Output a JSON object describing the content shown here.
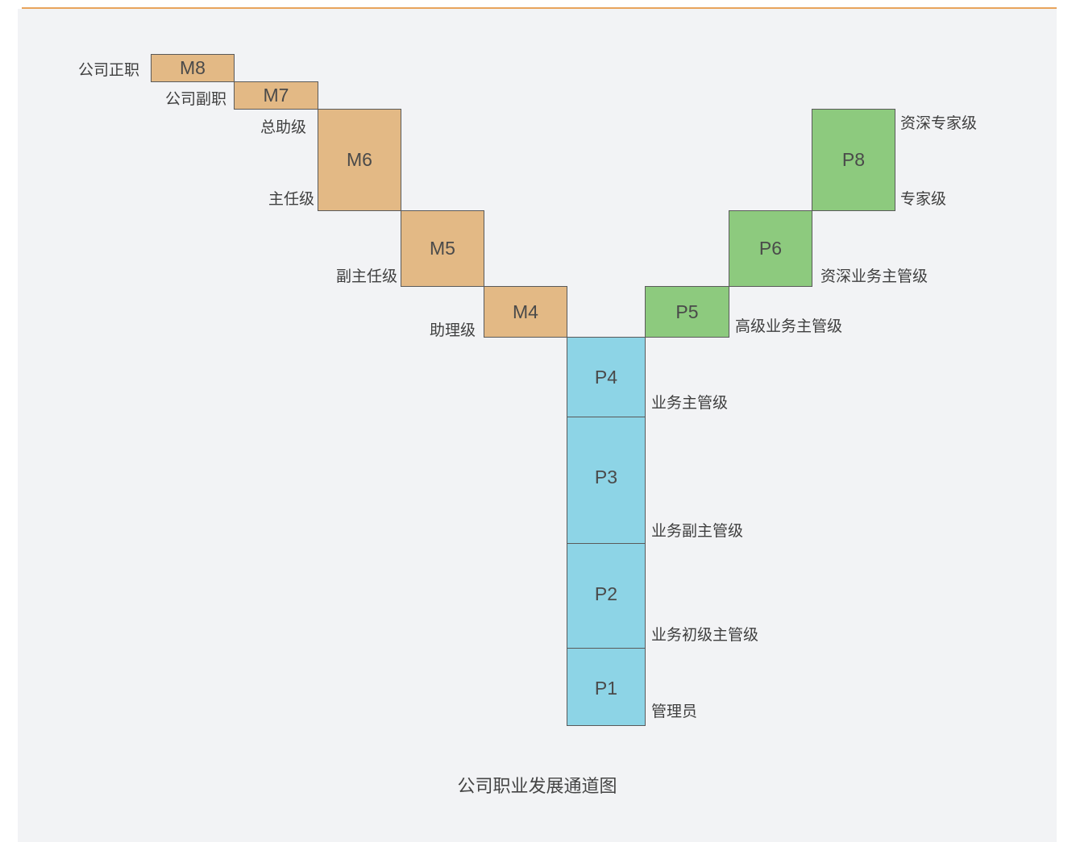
{
  "colors": {
    "management": "#e3b985",
    "professional_senior": "#8dca7e",
    "professional_base": "#8dd4e6",
    "top_rule": "#e8a45c",
    "background": "#f2f3f5"
  },
  "caption": "公司职业发展通道图",
  "management_track": [
    {
      "code": "M8",
      "title": "公司正职"
    },
    {
      "code": "M7",
      "title": "公司副职"
    },
    {
      "code": "M6",
      "titles": [
        "总助级",
        "主任级"
      ]
    },
    {
      "code": "M5",
      "title": "副主任级"
    },
    {
      "code": "M4",
      "title": "助理级"
    }
  ],
  "professional_senior_track": [
    {
      "code": "P8",
      "titles": [
        "资深专家级",
        "专家级"
      ]
    },
    {
      "code": "P6",
      "title": "资深业务主管级"
    },
    {
      "code": "P5",
      "title": "高级业务主管级"
    }
  ],
  "professional_base_track": [
    {
      "code": "P4",
      "title": "业务主管级"
    },
    {
      "code": "P3",
      "title": "业务副主管级"
    },
    {
      "code": "P2",
      "title": "业务初级主管级"
    },
    {
      "code": "P1",
      "title": "管理员"
    }
  ]
}
